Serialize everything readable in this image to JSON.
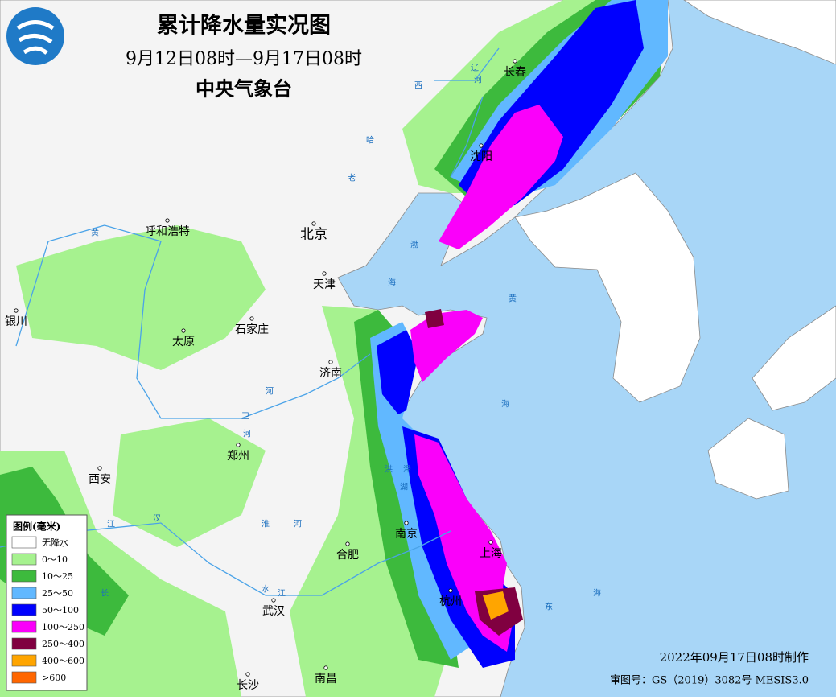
{
  "header": {
    "title": "累计降水量实况图",
    "period": "9月12日08时—9月17日08时",
    "agency": "中央气象台"
  },
  "legend": {
    "title": "图例(毫米)",
    "items": [
      {
        "label": "无降水",
        "color": "#ffffff"
      },
      {
        "label": "0～10",
        "color": "#a6f28f"
      },
      {
        "label": "10～25",
        "color": "#3dba3d"
      },
      {
        "label": "25～50",
        "color": "#61b8ff"
      },
      {
        "label": "50～100",
        "color": "#0000fe"
      },
      {
        "label": "100～250",
        "color": "#fa00fa"
      },
      {
        "label": "250～400",
        "color": "#800040"
      },
      {
        "label": "400～600",
        "color": "#ffa500"
      },
      {
        "label": ">600",
        "color": "#ff6600"
      }
    ]
  },
  "cities": [
    "长春",
    "沈阳",
    "呼和浩特",
    "北京",
    "天津",
    "银川",
    "太原",
    "石家庄",
    "济南",
    "西安",
    "郑州",
    "南京",
    "合肥",
    "上海",
    "杭州",
    "武汉",
    "长沙",
    "南昌"
  ],
  "water_labels": [
    "渤",
    "海",
    "黄",
    "海",
    "东",
    "海",
    "黄",
    "河",
    "卫",
    "河",
    "淮",
    "河",
    "汉",
    "江",
    "长",
    "水",
    "江",
    "洪",
    "泽",
    "湖",
    "辽",
    "河",
    "西",
    "哈",
    "老"
  ],
  "footer": {
    "made": "2022年09月17日08时制作",
    "approval": "审图号：GS（2019）3082号 MESIS3.0"
  }
}
